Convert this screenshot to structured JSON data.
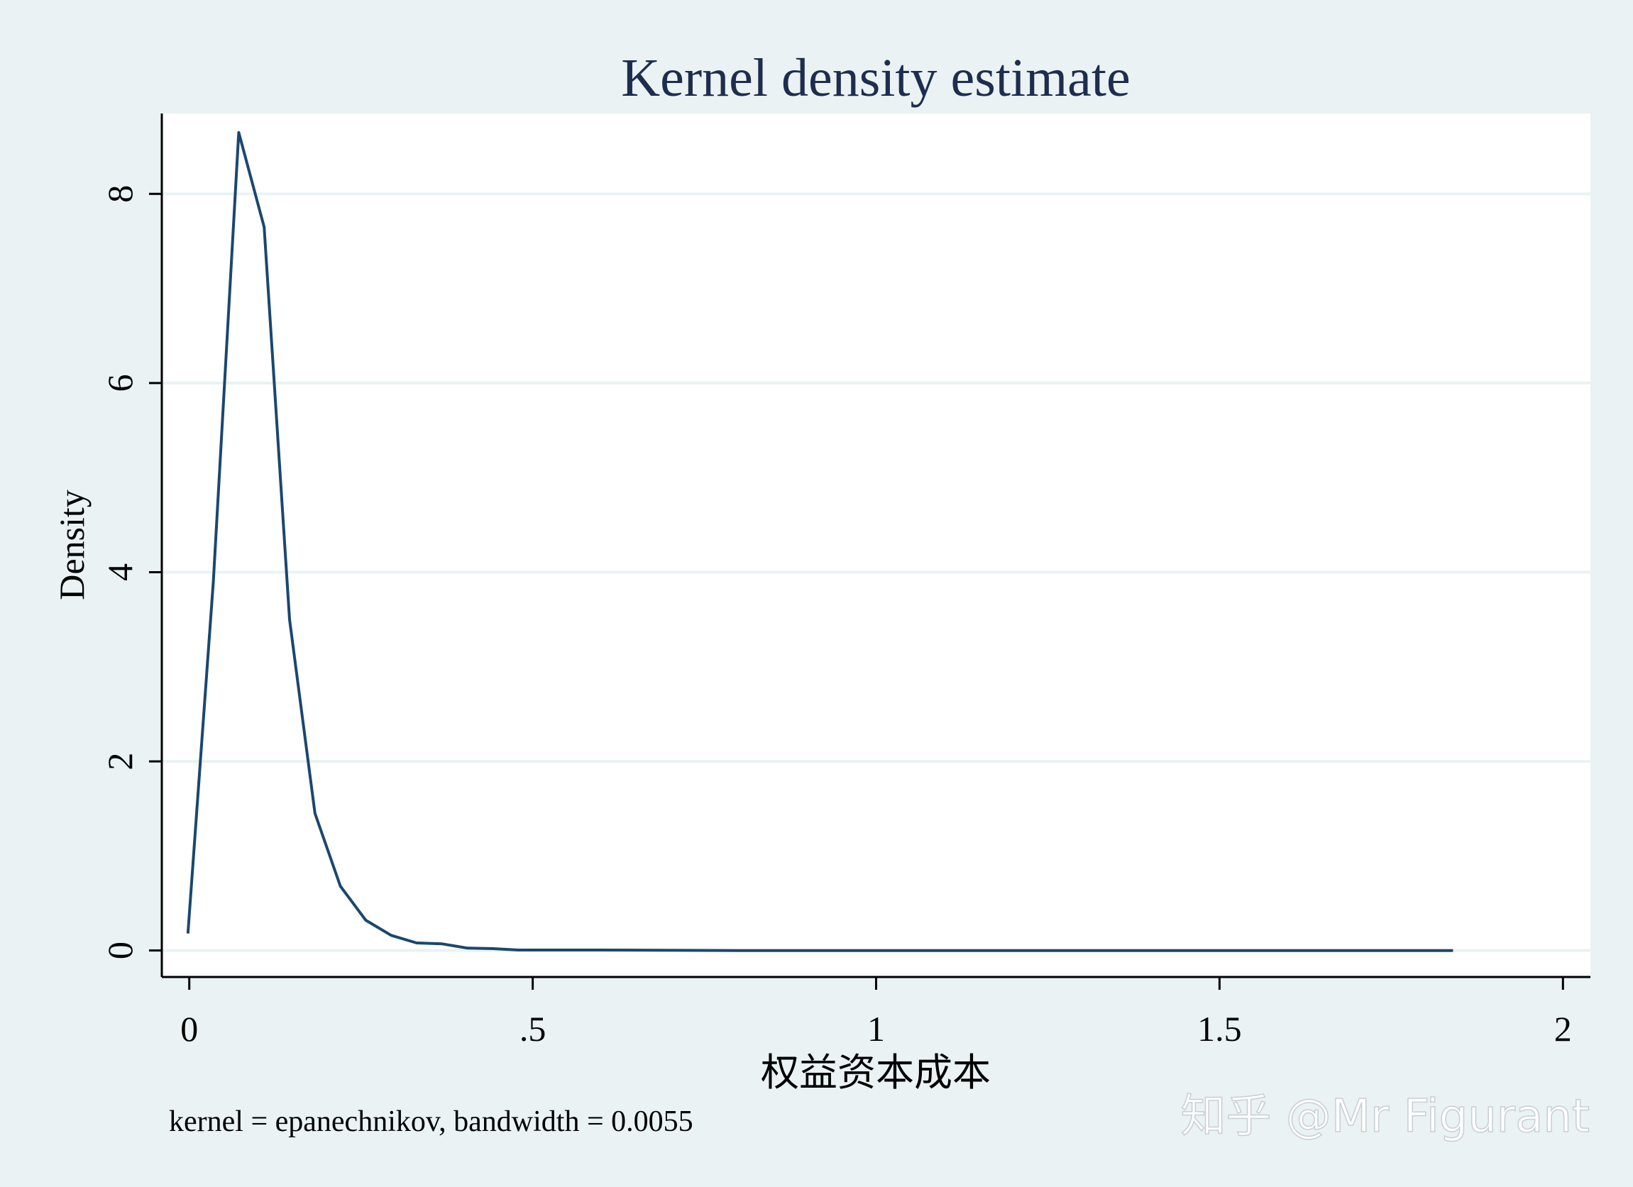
{
  "chart_data": {
    "type": "line",
    "title": "Kernel density estimate",
    "xlabel": "权益资本成本",
    "ylabel": "Density",
    "note": "kernel = epanechnikov, bandwidth = 0.0055",
    "watermark": "知乎 @Mr Figurant",
    "xlim": [
      -0.04,
      2.04
    ],
    "ylim": [
      -0.28,
      8.85
    ],
    "x_ticks": [
      0,
      0.5,
      1,
      1.5,
      2
    ],
    "x_tick_labels": [
      "0",
      ".5",
      "1",
      "1.5",
      "2"
    ],
    "y_ticks": [
      0,
      2,
      4,
      6,
      8
    ],
    "y_tick_labels": [
      "0",
      "2",
      "4",
      "6",
      "8"
    ],
    "grid": true,
    "series": [
      {
        "x": [
          -0.002,
          0.035,
          0.072,
          0.109,
          0.146,
          0.183,
          0.22,
          0.257,
          0.294,
          0.331,
          0.368,
          0.405,
          0.442,
          0.479,
          0.6,
          0.8,
          1.0,
          1.2,
          1.4,
          1.6,
          1.84
        ],
        "y": [
          0.18,
          3.9,
          8.65,
          7.65,
          3.5,
          1.45,
          0.68,
          0.32,
          0.16,
          0.08,
          0.07,
          0.025,
          0.02,
          0.005,
          0.005,
          0.0,
          0.0,
          0.0,
          0.0,
          0.0,
          0.0
        ]
      }
    ]
  },
  "colors": {
    "background": "#eaf2f3",
    "plot_background": "#ffffff",
    "line": "#1a476f",
    "text": "#000000",
    "title": "#1e2d4f",
    "grid": "#eaf2f3",
    "watermark": "#ffffff"
  }
}
